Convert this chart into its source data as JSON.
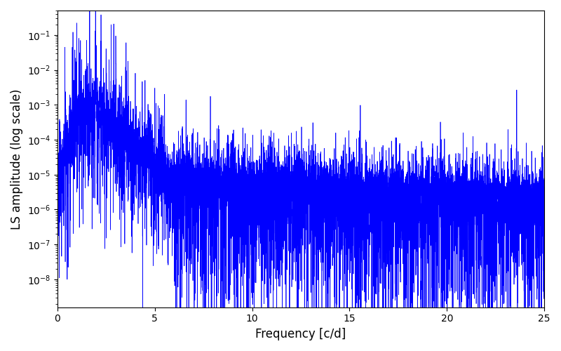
{
  "xlabel": "Frequency [c/d]",
  "ylabel": "LS amplitude (log scale)",
  "xlim": [
    0,
    25
  ],
  "ylim_log": [
    -8.8,
    -0.3
  ],
  "line_color": "#0000ff",
  "line_width": 0.5,
  "figsize": [
    8.0,
    5.0
  ],
  "dpi": 100,
  "freq_max": 25.0,
  "n_points": 8000,
  "seed": 7,
  "background_color": "#ffffff"
}
